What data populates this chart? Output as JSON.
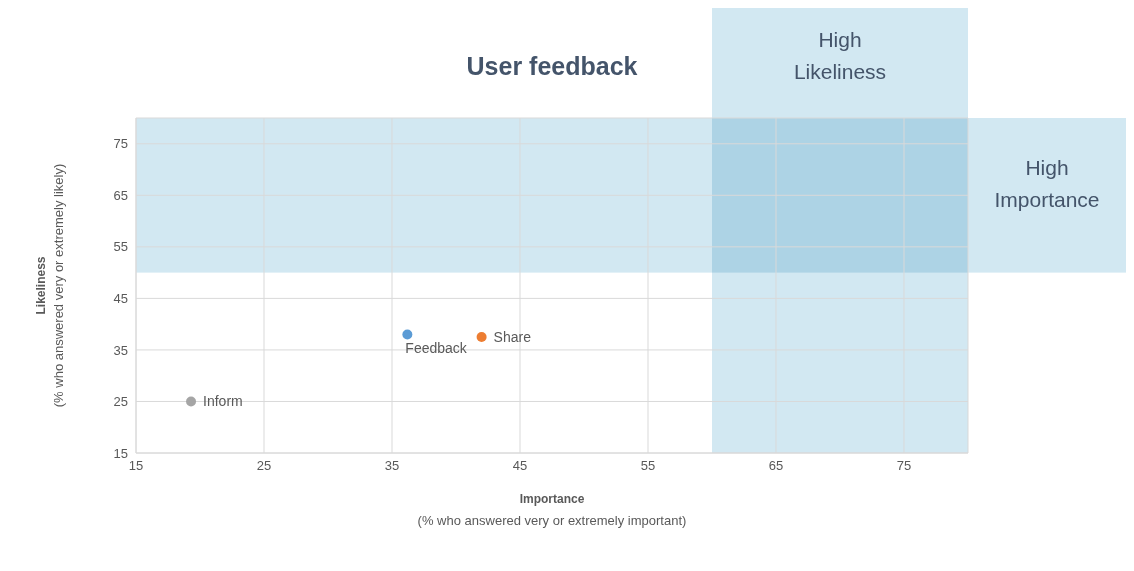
{
  "chart_data": {
    "type": "scatter",
    "title": "User feedback",
    "xlabel": "Importance\n(% who answered very or extremely important)",
    "ylabel": "Likeliness\n(% who answered very or extremely likely)",
    "series": [
      {
        "name": "Inform",
        "color": "#a5a5a5",
        "x": [
          19.3
        ],
        "values": [
          25
        ]
      },
      {
        "name": "Feedback",
        "color": "#5b9bd5",
        "x": [
          36.2
        ],
        "values": [
          38
        ]
      },
      {
        "name": "Share",
        "color": "#ed7d31",
        "x": [
          42
        ],
        "values": [
          37.5
        ]
      }
    ],
    "xlim": [
      15,
      80
    ],
    "xticks": [
      15,
      25,
      35,
      45,
      55,
      65,
      75
    ],
    "ylim": [
      15,
      80
    ],
    "yticks": [
      15,
      25,
      35,
      45,
      55,
      65,
      75
    ],
    "bands": [
      {
        "axis": "x",
        "from": 60,
        "to": 80,
        "label": "High Likeliness",
        "color": "#d2e8f2"
      },
      {
        "axis": "y",
        "from": 50,
        "to": 80,
        "label": "High Importance",
        "color": "#d2e8f2"
      }
    ],
    "grid": true,
    "marker": "circle"
  }
}
